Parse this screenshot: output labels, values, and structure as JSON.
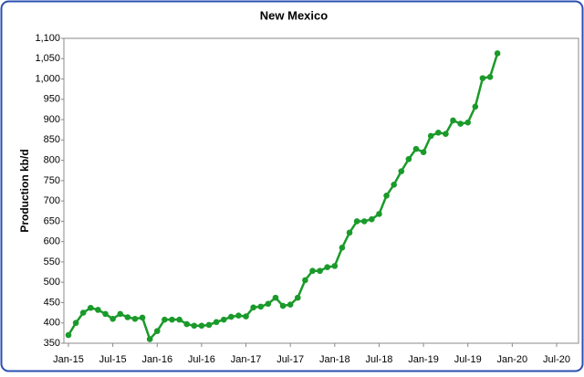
{
  "chart_data": {
    "type": "line",
    "title": "New Mexico",
    "y_label": "Production kb/d",
    "categories": [
      "Jan-15",
      null,
      null,
      null,
      null,
      null,
      "Jul-15",
      null,
      null,
      null,
      null,
      null,
      "Jan-16",
      null,
      null,
      null,
      null,
      null,
      "Jul-16",
      null,
      null,
      null,
      null,
      null,
      "Jan-17",
      null,
      null,
      null,
      null,
      null,
      "Jul-17",
      null,
      null,
      null,
      null,
      null,
      "Jan-18",
      null,
      null,
      null,
      null,
      null,
      "Jul-18",
      null,
      null,
      null,
      null,
      null,
      "Jan-19",
      null,
      null,
      null,
      null,
      null,
      "Jul-19",
      null,
      null,
      null,
      null,
      null,
      "Jan-20",
      null,
      null,
      null,
      null,
      null,
      "Jul-20"
    ],
    "values": [
      370,
      400,
      425,
      437,
      432,
      422,
      410,
      422,
      414,
      410,
      413,
      360,
      380,
      408,
      408,
      408,
      397,
      393,
      393,
      395,
      402,
      408,
      415,
      418,
      416,
      438,
      440,
      447,
      462,
      442,
      445,
      462,
      505,
      528,
      528,
      537,
      540,
      585,
      622,
      650,
      650,
      655,
      668,
      713,
      740,
      773,
      803,
      828,
      820,
      860,
      868,
      865,
      898,
      890,
      893,
      932,
      1002,
      1005,
      1063,
      null,
      null,
      null,
      null,
      null,
      null,
      null,
      null
    ],
    "color": "#1a9a2a",
    "ylim": [
      350,
      1100
    ],
    "yticks": [
      350,
      400,
      450,
      500,
      550,
      600,
      650,
      700,
      750,
      800,
      850,
      900,
      950,
      {
        "value": 1000,
        "label": "1,000"
      },
      {
        "value": 1050,
        "label": "1,050"
      },
      {
        "value": 1100,
        "label": "1,100"
      }
    ],
    "grid": false
  }
}
